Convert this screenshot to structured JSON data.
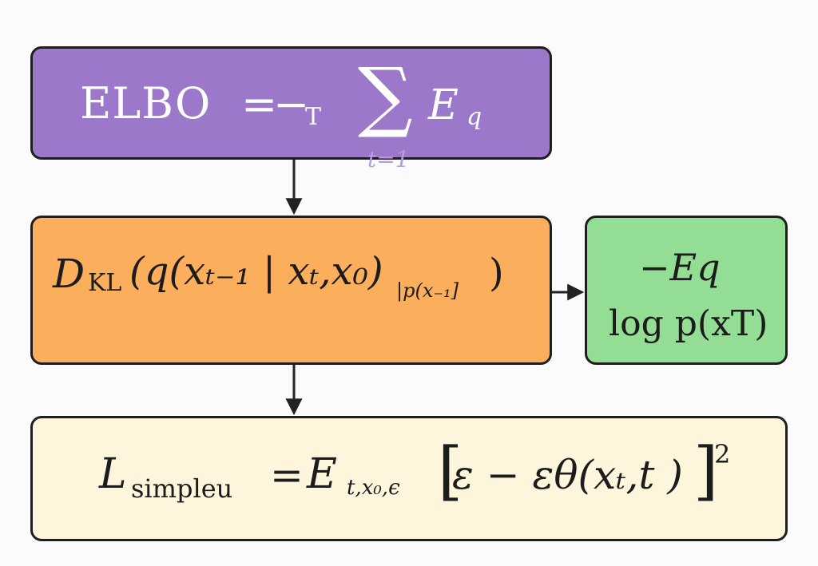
{
  "elbo_box": {
    "lhs": "ELBO",
    "equals": "=",
    "minus": "−",
    "T_sub": "T",
    "sum": "∑",
    "E": "E",
    "q_sub": "q",
    "sum_index": "t=1",
    "color": "#9b78c9"
  },
  "kl_box": {
    "D": "D",
    "KL": "KL",
    "body": "(q(xₜ₋₁ | xₜ,x₀)",
    "sub": "|p(x₋₁]",
    "close": ")",
    "color": "#fbae5b"
  },
  "prior_box": {
    "line1": "−Eq",
    "line2": "log p(xT)",
    "color": "#93dd94"
  },
  "simple_box": {
    "L": "L",
    "sub": "simpleu",
    "equals": "=",
    "E": "E",
    "E_sub": "t,x₀,ϵ",
    "bracket_open": "[",
    "body": "ε  −  εθ(xₜ,t )",
    "bracket_close": "]",
    "power": "2",
    "color": "#fdf5dc"
  }
}
